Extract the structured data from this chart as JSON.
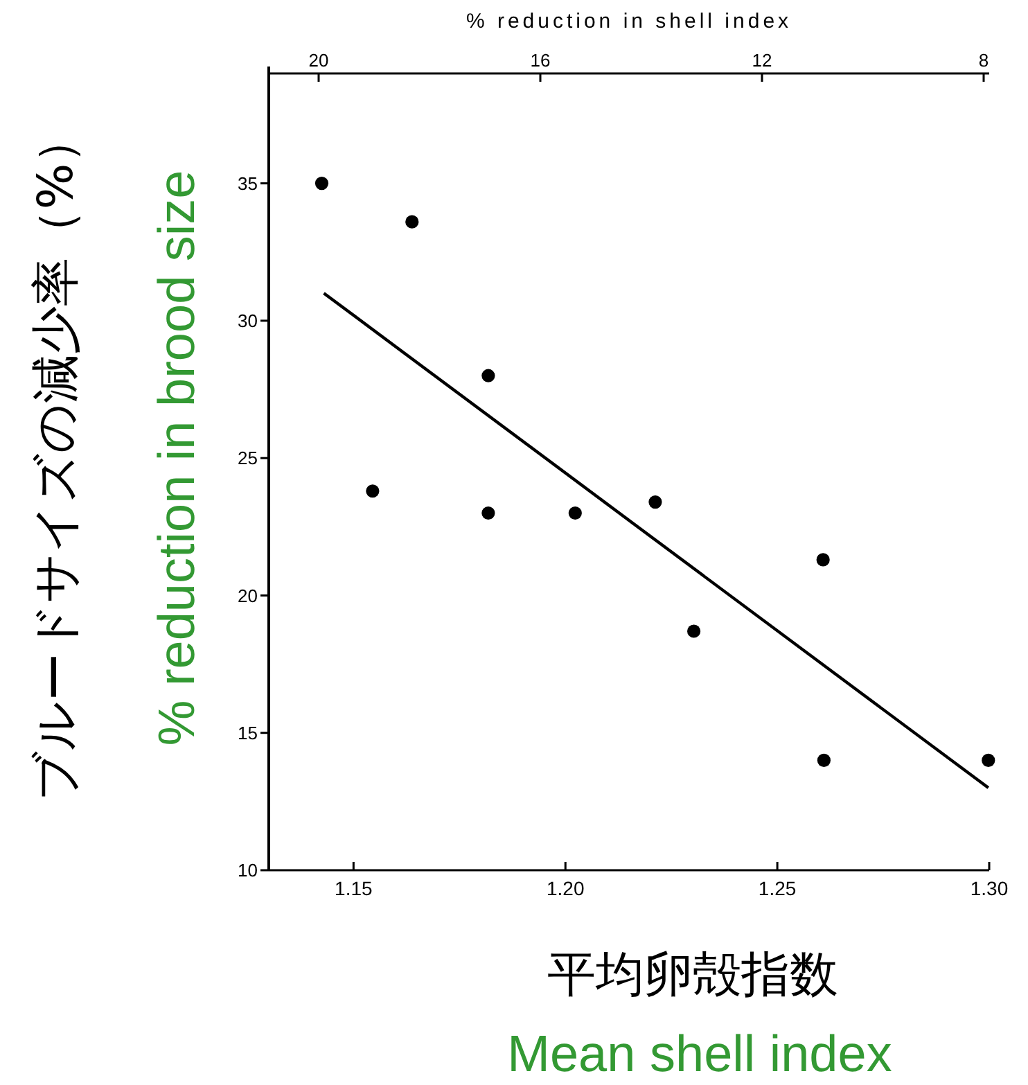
{
  "chart_data": {
    "type": "scatter",
    "xlabel": "平均卵殻指数",
    "ylabel": "ブルードサイズの減少率（%）",
    "x2label": "% reduction in shell index",
    "annotations": [
      "% reduction in brood size",
      "Mean shell index"
    ],
    "xlim": [
      1.13,
      1.3
    ],
    "xticks": [
      1.15,
      {
        "value": 1.2,
        "label": "1.20"
      },
      1.25,
      {
        "value": 1.3,
        "label": "1.30"
      }
    ],
    "x2lim": [
      20.9,
      7.9
    ],
    "x2ticks": [
      20,
      16,
      12,
      8
    ],
    "ylim": [
      10,
      39
    ],
    "yticks": [
      10,
      15,
      20,
      25,
      30,
      35
    ],
    "series": [
      {
        "color": "#000000",
        "marker": "circle",
        "x": [
          1.1425,
          1.1638,
          1.1545,
          1.1818,
          1.1818,
          1.2023,
          1.2212,
          1.2303,
          1.2608,
          1.261,
          1.2998
        ],
        "values": [
          35,
          33.6,
          23.8,
          28,
          23,
          23,
          23.4,
          18.7,
          21.3,
          14,
          14
        ]
      },
      {
        "type": "line",
        "color": "#000000",
        "marker": "none",
        "x": [
          1.143,
          1.2998
        ],
        "values": [
          31,
          13
        ]
      }
    ]
  }
}
